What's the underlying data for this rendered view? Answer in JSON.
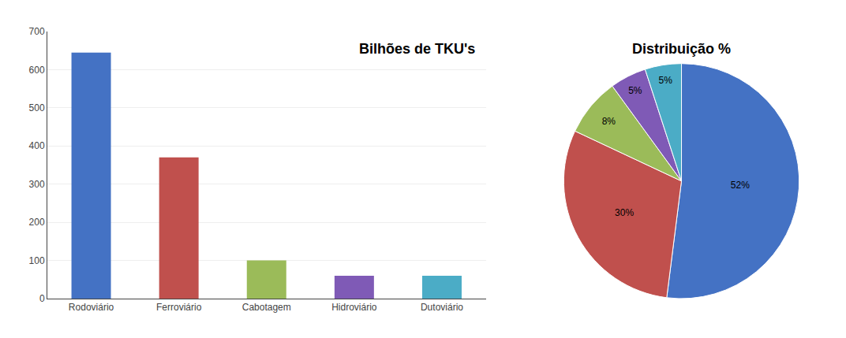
{
  "chart_data": [
    {
      "type": "bar",
      "title": "Bilhões de TKU's",
      "categories": [
        "Rodoviário",
        "Ferroviário",
        "Cabotagem",
        "Hidroviário",
        "Dutoviário"
      ],
      "values": [
        645,
        370,
        100,
        60,
        60
      ],
      "colors": [
        "#4472c4",
        "#c0504d",
        "#9bbb59",
        "#7f5ab6",
        "#4bacc6"
      ],
      "ylim": [
        0,
        700
      ],
      "yticks": [
        0,
        100,
        200,
        300,
        400,
        500,
        600,
        700
      ],
      "grid": true
    },
    {
      "type": "pie",
      "title": "Distribuição %",
      "values": [
        52,
        30,
        8,
        5,
        5
      ],
      "value_labels": [
        "52%",
        "30%",
        "8%",
        "5%",
        "5%"
      ],
      "data_labels": true,
      "colors": [
        "#4472c4",
        "#c0504d",
        "#9bbb59",
        "#7f5ab6",
        "#4bacc6"
      ]
    }
  ]
}
